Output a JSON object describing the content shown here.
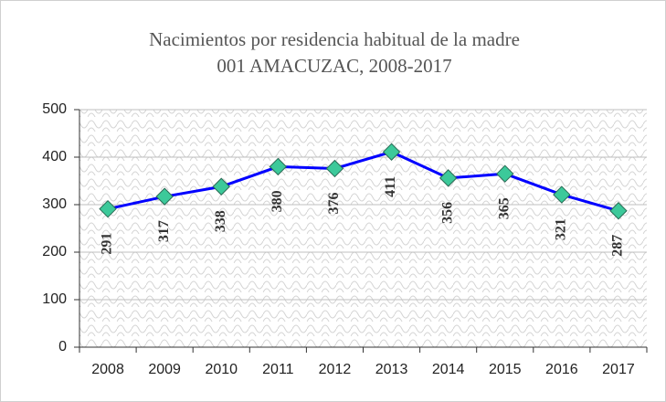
{
  "chart_data": {
    "type": "line",
    "title": "Nacimientos por residencia habitual de la madre",
    "subtitle": "001 AMACUZAC, 2008-2017",
    "categories": [
      "2008",
      "2009",
      "2010",
      "2011",
      "2012",
      "2013",
      "2014",
      "2015",
      "2016",
      "2017"
    ],
    "series": [
      {
        "name": "Nacimientos",
        "color": "#0000ff",
        "marker_color": "#3cc99a",
        "values": [
          291,
          317,
          338,
          380,
          376,
          411,
          356,
          365,
          321,
          287
        ]
      }
    ],
    "ylim": [
      0,
      500
    ],
    "yticks": [
      0,
      100,
      200,
      300,
      400,
      500
    ],
    "grid": true
  }
}
